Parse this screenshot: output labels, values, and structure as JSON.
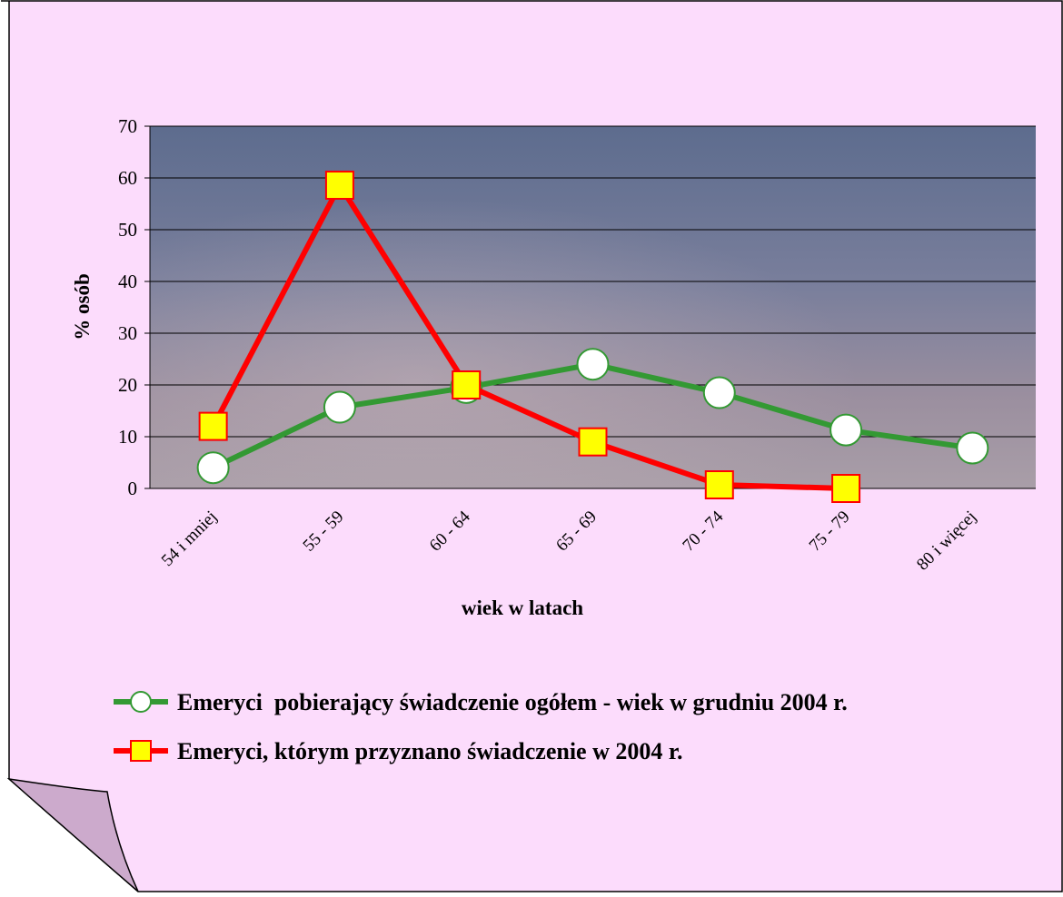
{
  "chart_data": {
    "type": "line",
    "y_label": "% osób",
    "x_label": "wiek w latach",
    "categories": [
      "54 i mniej",
      "55 - 59",
      "60 - 64",
      "65 - 69",
      "70 - 74",
      "75 - 79",
      "80 i więcej"
    ],
    "series": [
      {
        "name": "Emeryci  pobierający świadczenie ogółem - wiek w grudniu 2004 r.",
        "color": "#339933",
        "marker": "circle",
        "marker_color": "#ffffff",
        "values": [
          4,
          15.7,
          19.5,
          24,
          18.5,
          11.3,
          7.8
        ]
      },
      {
        "name": "Emeryci, którym przyznano świadczenie w 2004 r.",
        "color": "#ff0000",
        "marker": "square",
        "marker_color": "#ffff00",
        "values": [
          12,
          58.6,
          20,
          9,
          0.7,
          0,
          null
        ]
      }
    ],
    "ylim": [
      0,
      70
    ],
    "yticks": [
      0,
      10,
      20,
      30,
      40,
      50,
      60,
      70
    ],
    "grid": true
  }
}
